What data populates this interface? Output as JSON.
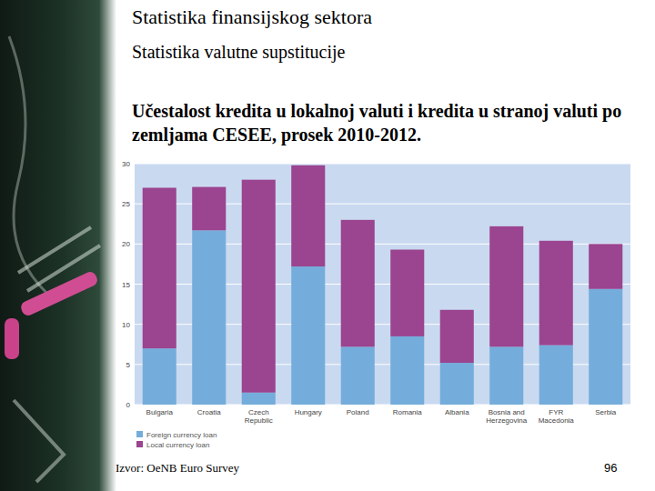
{
  "slide": {
    "title": "Statistika finansijskog sektora",
    "subtitle": "Statistika valutne supstitucije",
    "heading": "Učestalost kredita u lokalnoj valuti i kredita u stranoj valuti po zemljama CESEE, prosek 2010-2012.",
    "source": "Izvor: OeNB Euro Survey",
    "page": 96
  },
  "chart_data": {
    "type": "bar",
    "stacked": true,
    "categories": [
      "Bulgaria",
      "Croatia",
      "Czech Republic",
      "Hungary",
      "Poland",
      "Romania",
      "Albania",
      "Bosnia and Herzegovina",
      "FYR Macedonia",
      "Serbia"
    ],
    "series": [
      {
        "name": "Foreign currency loan",
        "color": "#74addb",
        "values": [
          7.0,
          21.7,
          1.5,
          17.2,
          7.2,
          8.5,
          5.2,
          7.2,
          7.4,
          14.4
        ]
      },
      {
        "name": "Local currency loan",
        "color": "#9b448f",
        "values": [
          20.0,
          5.4,
          26.5,
          12.6,
          15.8,
          10.8,
          6.6,
          15.0,
          13.0,
          5.6
        ]
      }
    ],
    "ylim": [
      0,
      30
    ],
    "yticks": [
      0,
      5,
      10,
      15,
      20,
      25,
      30
    ],
    "grid": true,
    "legend": "bottom"
  }
}
